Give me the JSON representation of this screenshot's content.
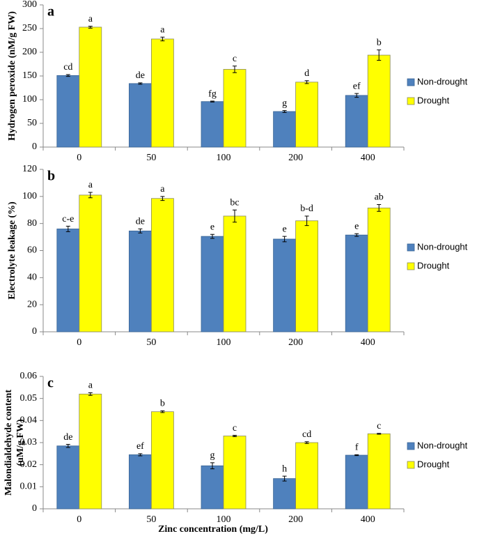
{
  "chart_data": [
    {
      "type": "bar",
      "panel_label": "a",
      "y_label": "Hydrogen peroxide (nM/g FW)",
      "categories": [
        "0",
        "50",
        "100",
        "200",
        "400"
      ],
      "series": [
        {
          "name": "Non-drought",
          "color": "#4f81bd",
          "values": [
            151,
            134,
            96,
            75,
            109
          ],
          "errors": [
            2,
            1.5,
            1,
            2,
            4
          ],
          "letters": [
            "cd",
            "de",
            "fg",
            "g",
            "ef"
          ]
        },
        {
          "name": "Drought",
          "color": "#ffff00",
          "values": [
            253,
            228,
            164,
            137,
            194
          ],
          "errors": [
            2,
            4,
            7,
            3,
            11
          ],
          "letters": [
            "a",
            "a",
            "c",
            "d",
            "b"
          ]
        }
      ],
      "ylim": [
        0,
        300
      ],
      "yticks": [
        0,
        50,
        100,
        150,
        200,
        250,
        300
      ],
      "legend": "right"
    },
    {
      "type": "bar",
      "panel_label": "b",
      "y_label": "Electrolyte leakage (%)",
      "categories": [
        "0",
        "50",
        "100",
        "200",
        "400"
      ],
      "series": [
        {
          "name": "Non-drought",
          "color": "#4f81bd",
          "values": [
            76,
            74.5,
            70.5,
            68.5,
            71.5
          ],
          "errors": [
            2,
            1.5,
            1.5,
            2,
            1
          ],
          "letters": [
            "c-e",
            "de",
            "e",
            "e",
            "e"
          ]
        },
        {
          "name": "Drought",
          "color": "#ffff00",
          "values": [
            101,
            98.5,
            85.5,
            82,
            91.5
          ],
          "errors": [
            2,
            1.5,
            4.5,
            3.5,
            2.5
          ],
          "letters": [
            "a",
            "a",
            "bc",
            "b-d",
            "ab"
          ]
        }
      ],
      "ylim": [
        0,
        120
      ],
      "yticks": [
        0,
        20,
        40,
        60,
        80,
        100,
        120
      ],
      "legend": "right"
    },
    {
      "type": "bar",
      "panel_label": "c",
      "y_label": [
        "Malondialdehyde content",
        "(uM/g FW)"
      ],
      "x_label": "Zinc concentration (mg/L)",
      "categories": [
        "0",
        "50",
        "100",
        "200",
        "400"
      ],
      "series": [
        {
          "name": "Non-drought",
          "color": "#4f81bd",
          "values": [
            0.0285,
            0.0245,
            0.0195,
            0.0137,
            0.0243
          ],
          "errors": [
            0.0007,
            0.0005,
            0.0014,
            0.0011,
            0.0002
          ],
          "letters": [
            "de",
            "ef",
            "g",
            "h",
            "f"
          ]
        },
        {
          "name": "Drought",
          "color": "#ffff00",
          "values": [
            0.052,
            0.044,
            0.033,
            0.03,
            0.034
          ],
          "errors": [
            0.0006,
            0.0004,
            0.0003,
            0.0004,
            0.0002
          ],
          "letters": [
            "a",
            "b",
            "c",
            "cd",
            "c"
          ]
        }
      ],
      "ylim": [
        0,
        0.06
      ],
      "yticks": [
        0,
        0.01,
        0.02,
        0.03,
        0.04,
        0.05,
        0.06
      ],
      "legend": "right"
    }
  ]
}
